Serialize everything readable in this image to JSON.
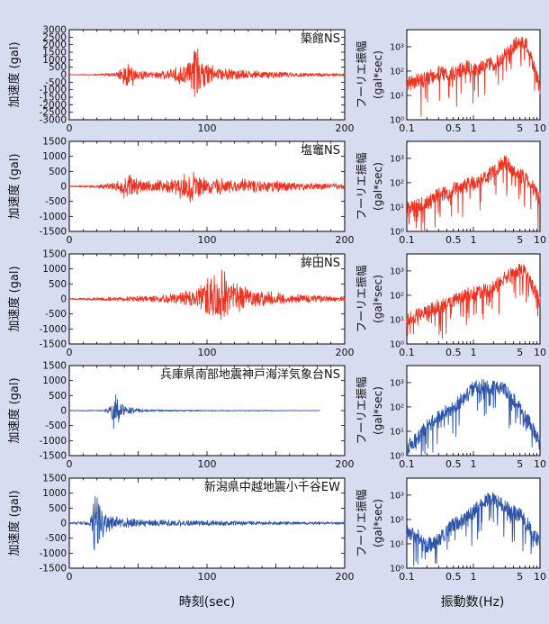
{
  "figure": {
    "background": "#d8dcf0",
    "time_xlabel": "時刻(sec)",
    "freq_xlabel": "振動数(Hz)",
    "time_ylabel": "加速度 (gal)",
    "freq_ylabel_1": "フーリエ振幅",
    "freq_ylabel_2": "(gal*sec)"
  },
  "chart_data": [
    {
      "type": "line",
      "panel": "time-history",
      "title": "築館NS",
      "color": "#ee3322",
      "xlim": [
        0,
        200
      ],
      "ylim": [
        -3000,
        3000
      ],
      "yticks": [
        -3000,
        -2500,
        -2000,
        -1500,
        -1000,
        -500,
        0,
        500,
        1000,
        1500,
        2000,
        2500,
        3000
      ],
      "xticks": [
        0,
        100,
        200
      ],
      "xticklabels": [
        "0",
        "100",
        "200"
      ],
      "series": [
        {
          "x": [
            0,
            20,
            35,
            40,
            44,
            50,
            60,
            75,
            85,
            88,
            92,
            94,
            96,
            100,
            110,
            130,
            150,
            170,
            200
          ],
          "peak_amplitude": [
            20,
            50,
            200,
            700,
            1000,
            400,
            250,
            400,
            900,
            1100,
            2700,
            1500,
            1300,
            900,
            500,
            300,
            250,
            150,
            100
          ]
        }
      ]
    },
    {
      "type": "line",
      "panel": "fourier-spectrum",
      "color": "#ee3322",
      "xscale": "log",
      "yscale": "log",
      "xlim": [
        0.1,
        10
      ],
      "ylim": [
        1,
        5000
      ],
      "xticklabels": [
        "0.1",
        "0.5",
        "1",
        "5",
        "10"
      ],
      "yticklabels": [
        "10⁰",
        "10¹",
        "10²",
        "10³"
      ],
      "series": [
        {
          "x": [
            0.1,
            0.2,
            0.3,
            0.5,
            0.8,
            1,
            2,
            3,
            4,
            5,
            6,
            7,
            8,
            10
          ],
          "y": [
            30,
            50,
            80,
            80,
            150,
            120,
            200,
            500,
            1000,
            2000,
            1500,
            500,
            150,
            20
          ]
        }
      ]
    },
    {
      "type": "line",
      "panel": "time-history",
      "title": "塩竈NS",
      "color": "#ee3322",
      "xlim": [
        0,
        200
      ],
      "ylim": [
        -1500,
        1500
      ],
      "yticks": [
        -1500,
        -1000,
        -500,
        0,
        500,
        1000,
        1500
      ],
      "xticks": [
        0,
        100,
        200
      ],
      "xticklabels": [
        "0",
        "100",
        "200"
      ],
      "series": [
        {
          "x": [
            0,
            20,
            35,
            40,
            45,
            55,
            70,
            85,
            88,
            95,
            110,
            130,
            150,
            170,
            200
          ],
          "peak_amplitude": [
            20,
            50,
            200,
            500,
            400,
            200,
            250,
            500,
            600,
            400,
            300,
            250,
            200,
            150,
            100
          ]
        }
      ]
    },
    {
      "type": "line",
      "panel": "fourier-spectrum",
      "color": "#ee3322",
      "xscale": "log",
      "yscale": "log",
      "xlim": [
        0.1,
        10
      ],
      "ylim": [
        1,
        5000
      ],
      "xticklabels": [
        "0.1",
        "0.5",
        "1",
        "5",
        "10"
      ],
      "yticklabels": [
        "10⁰",
        "10¹",
        "10²",
        "10³"
      ],
      "series": [
        {
          "x": [
            0.1,
            0.2,
            0.3,
            0.5,
            0.8,
            1,
            1.5,
            2,
            3,
            4,
            5,
            7,
            10
          ],
          "y": [
            8,
            15,
            30,
            50,
            80,
            100,
            150,
            300,
            700,
            300,
            200,
            100,
            20
          ]
        }
      ]
    },
    {
      "type": "line",
      "panel": "time-history",
      "title": "鉾田NS",
      "color": "#ee3322",
      "xlim": [
        0,
        200
      ],
      "ylim": [
        -1500,
        1500
      ],
      "yticks": [
        -1500,
        -1000,
        -500,
        0,
        500,
        1000,
        1500
      ],
      "xticks": [
        0,
        100,
        200
      ],
      "xticklabels": [
        "0",
        "100",
        "200"
      ],
      "series": [
        {
          "x": [
            0,
            20,
            40,
            60,
            80,
            95,
            100,
            105,
            110,
            115,
            120,
            130,
            150,
            170,
            200
          ],
          "peak_amplitude": [
            20,
            60,
            100,
            120,
            200,
            500,
            700,
            1000,
            1200,
            900,
            600,
            400,
            250,
            150,
            100
          ]
        }
      ]
    },
    {
      "type": "line",
      "panel": "fourier-spectrum",
      "color": "#ee3322",
      "xscale": "log",
      "yscale": "log",
      "xlim": [
        0.1,
        10
      ],
      "ylim": [
        1,
        5000
      ],
      "xticklabels": [
        "0.1",
        "0.5",
        "1",
        "5",
        "10"
      ],
      "yticklabels": [
        "10⁰",
        "10¹",
        "10²",
        "10³"
      ],
      "series": [
        {
          "x": [
            0.1,
            0.2,
            0.3,
            0.5,
            0.8,
            1,
            2,
            3,
            5,
            6,
            7,
            10
          ],
          "y": [
            10,
            20,
            40,
            60,
            100,
            120,
            200,
            500,
            1200,
            800,
            400,
            50
          ]
        }
      ]
    },
    {
      "type": "line",
      "panel": "time-history",
      "title": "兵庫県南部地震神戸海洋気象台NS",
      "color": "#2e55a8",
      "xlim": [
        0,
        200
      ],
      "ylim": [
        -1500,
        1500
      ],
      "yticks": [
        -1500,
        -1000,
        -500,
        0,
        500,
        1000,
        1500
      ],
      "xticks": [
        0,
        100,
        200
      ],
      "xticklabels": [
        "0",
        "100",
        "200"
      ],
      "series": [
        {
          "x": [
            0,
            25,
            30,
            31,
            32,
            34,
            36,
            40,
            50,
            60,
            80,
            100,
            130,
            160,
            182
          ],
          "peak_amplitude": [
            10,
            20,
            200,
            500,
            800,
            600,
            400,
            200,
            80,
            40,
            30,
            20,
            15,
            10,
            8
          ]
        }
      ]
    },
    {
      "type": "line",
      "panel": "fourier-spectrum",
      "color": "#2e55a8",
      "xscale": "log",
      "yscale": "log",
      "xlim": [
        0.1,
        10
      ],
      "ylim": [
        1,
        5000
      ],
      "xticklabels": [
        "0.1",
        "0.5",
        "1",
        "5",
        "10"
      ],
      "yticklabels": [
        "10⁰",
        "10¹",
        "10²",
        "10³"
      ],
      "series": [
        {
          "x": [
            0.1,
            0.15,
            0.2,
            0.3,
            0.5,
            0.8,
            1,
            1.5,
            2,
            3,
            5,
            7,
            10
          ],
          "y": [
            2,
            6,
            15,
            40,
            100,
            300,
            600,
            700,
            700,
            500,
            100,
            20,
            3
          ]
        }
      ]
    },
    {
      "type": "line",
      "panel": "time-history",
      "title": "新潟県中越地震小千谷EW",
      "color": "#2e55a8",
      "xlim": [
        0,
        200
      ],
      "ylim": [
        -1500,
        1500
      ],
      "yticks": [
        -1500,
        -1000,
        -500,
        0,
        500,
        1000,
        1500
      ],
      "xticks": [
        0,
        100,
        200
      ],
      "xticklabels": [
        "0",
        "100",
        "200"
      ],
      "series": [
        {
          "x": [
            0,
            15,
            18,
            20,
            22,
            25,
            30,
            40,
            50,
            70,
            100,
            130,
            160,
            200
          ],
          "peak_amplitude": [
            20,
            100,
            1200,
            1300,
            900,
            400,
            300,
            200,
            150,
            120,
            100,
            80,
            60,
            50
          ]
        }
      ]
    },
    {
      "type": "line",
      "panel": "fourier-spectrum",
      "color": "#2e55a8",
      "xscale": "log",
      "yscale": "log",
      "xlim": [
        0.1,
        10
      ],
      "ylim": [
        1,
        5000
      ],
      "xticklabels": [
        "0.1",
        "0.5",
        "1",
        "5",
        "10"
      ],
      "yticklabels": [
        "10⁰",
        "10¹",
        "10²",
        "10³"
      ],
      "series": [
        {
          "x": [
            0.1,
            0.15,
            0.2,
            0.3,
            0.5,
            0.8,
            1,
            1.5,
            2,
            3,
            5,
            7,
            10
          ],
          "y": [
            30,
            20,
            8,
            15,
            60,
            120,
            200,
            600,
            800,
            300,
            150,
            50,
            10
          ]
        }
      ]
    }
  ]
}
